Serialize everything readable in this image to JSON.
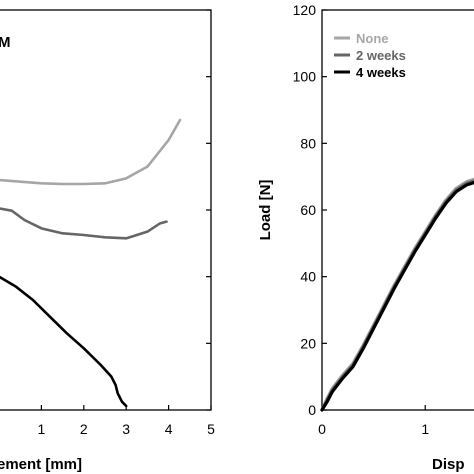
{
  "chart_data": [
    {
      "type": "line",
      "panel_label_partial": "M",
      "xlabel_partial": "ement [mm]",
      "x_ticks": [
        1,
        2,
        3,
        4,
        5
      ],
      "y_ticks": [],
      "xlim": [
        0,
        5
      ],
      "ylim": [
        0,
        120
      ],
      "series": [
        {
          "color": "#a6a6a6",
          "points": [
            [
              0,
              69
            ],
            [
              0.5,
              68.5
            ],
            [
              1,
              68
            ],
            [
              1.5,
              67.8
            ],
            [
              2,
              67.8
            ],
            [
              2.5,
              68
            ],
            [
              3,
              69.5
            ],
            [
              3.5,
              73
            ],
            [
              4,
              81
            ],
            [
              4.27,
              87
            ]
          ]
        },
        {
          "color": "#666666",
          "points": [
            [
              0,
              60.5
            ],
            [
              0.3,
              59.8
            ],
            [
              0.6,
              57
            ],
            [
              1,
              54.5
            ],
            [
              1.5,
              53
            ],
            [
              2,
              52.5
            ],
            [
              2.5,
              51.8
            ],
            [
              3,
              51.5
            ],
            [
              3.5,
              53.5
            ],
            [
              3.8,
              56
            ],
            [
              3.95,
              56.5
            ]
          ]
        },
        {
          "color": "#000000",
          "points": [
            [
              0,
              40
            ],
            [
              0.4,
              37
            ],
            [
              0.8,
              33
            ],
            [
              1.2,
              28
            ],
            [
              1.6,
              23
            ],
            [
              2,
              18.5
            ],
            [
              2.4,
              13.5
            ],
            [
              2.65,
              10
            ],
            [
              2.75,
              7.5
            ],
            [
              2.8,
              5
            ],
            [
              2.9,
              2.5
            ],
            [
              3.0,
              1.2
            ]
          ]
        }
      ]
    },
    {
      "type": "line",
      "xlabel_partial": "Disp",
      "ylabel": "Load [N]",
      "x_ticks": [
        0,
        1
      ],
      "y_ticks": [
        0,
        20,
        40,
        60,
        80,
        100,
        120
      ],
      "xlim": [
        0,
        1.55
      ],
      "ylim": [
        0,
        120
      ],
      "legend": {
        "position": "top-left"
      },
      "series": [
        {
          "name": "None",
          "color": "#a6a6a6",
          "points": [
            [
              0,
              0
            ],
            [
              0.05,
              3.5
            ],
            [
              0.1,
              6.5
            ],
            [
              0.2,
              10.5
            ],
            [
              0.3,
              14
            ],
            [
              0.4,
              19.5
            ],
            [
              0.5,
              25.5
            ],
            [
              0.6,
              31.5
            ],
            [
              0.7,
              37.5
            ],
            [
              0.8,
              43
            ],
            [
              0.9,
              48.5
            ],
            [
              1.0,
              53.5
            ],
            [
              1.1,
              58.5
            ],
            [
              1.2,
              63
            ],
            [
              1.3,
              66.5
            ],
            [
              1.4,
              68.5
            ],
            [
              1.5,
              69.5
            ],
            [
              1.55,
              69.5
            ]
          ]
        },
        {
          "name": "2 weeks",
          "color": "#666666",
          "points": [
            [
              0,
              0
            ],
            [
              0.05,
              3
            ],
            [
              0.1,
              6
            ],
            [
              0.2,
              10
            ],
            [
              0.3,
              13.5
            ],
            [
              0.4,
              19
            ],
            [
              0.5,
              25
            ],
            [
              0.6,
              31
            ],
            [
              0.7,
              37
            ],
            [
              0.8,
              42.5
            ],
            [
              0.9,
              48
            ],
            [
              1.0,
              53
            ],
            [
              1.1,
              58
            ],
            [
              1.2,
              62.5
            ],
            [
              1.3,
              66
            ],
            [
              1.4,
              68
            ],
            [
              1.5,
              69
            ],
            [
              1.55,
              69
            ]
          ]
        },
        {
          "name": "4 weeks",
          "color": "#000000",
          "points": [
            [
              0,
              0
            ],
            [
              0.05,
              2.5
            ],
            [
              0.1,
              5.5
            ],
            [
              0.2,
              9.5
            ],
            [
              0.3,
              13
            ],
            [
              0.4,
              18.5
            ],
            [
              0.5,
              24.5
            ],
            [
              0.6,
              30.5
            ],
            [
              0.7,
              36.5
            ],
            [
              0.8,
              42
            ],
            [
              0.9,
              47.5
            ],
            [
              1.0,
              52.5
            ],
            [
              1.1,
              57.5
            ],
            [
              1.2,
              62
            ],
            [
              1.3,
              65.5
            ],
            [
              1.4,
              67.5
            ],
            [
              1.5,
              68.5
            ],
            [
              1.55,
              68.5
            ]
          ]
        }
      ]
    }
  ]
}
